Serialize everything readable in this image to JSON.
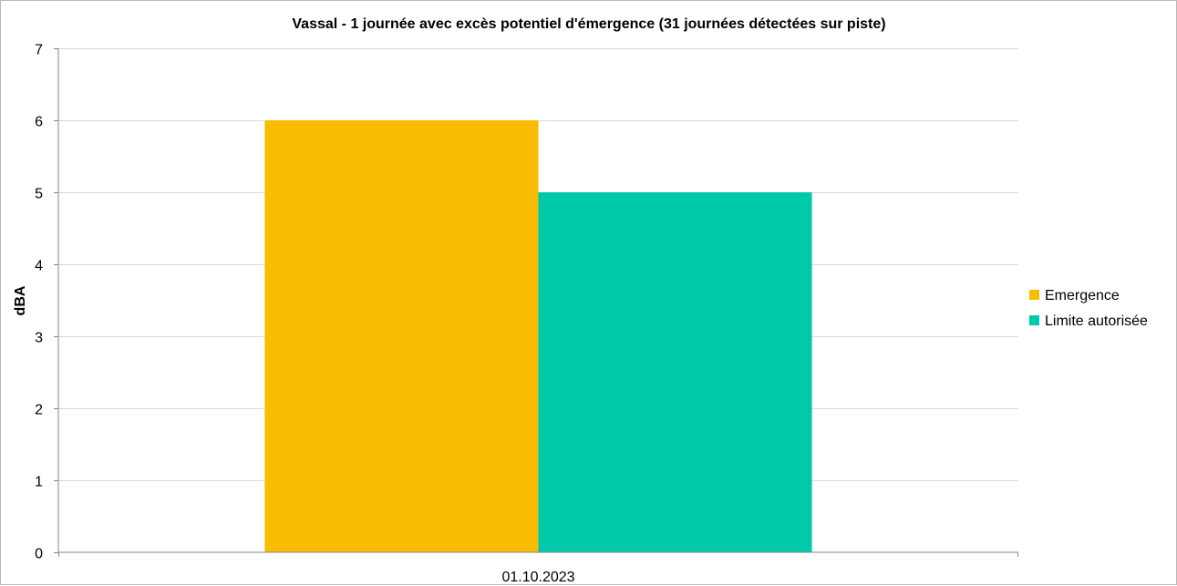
{
  "chart_data": {
    "type": "bar",
    "title": "Vassal - 1 journée avec excès potentiel d'émergence (31 journées détectées sur piste)",
    "xlabel": "",
    "ylabel": "dBA",
    "categories": [
      "01.10.2023"
    ],
    "series": [
      {
        "name": "Emergence",
        "color": "#f8bd00",
        "values": [
          6
        ]
      },
      {
        "name": "Limite autorisée",
        "color": "#00c8ab",
        "values": [
          5
        ]
      }
    ],
    "ylim": [
      0,
      7
    ],
    "yticks": [
      "0",
      "1",
      "2",
      "3",
      "4",
      "5",
      "6",
      "7"
    ],
    "grid": true,
    "legend_position": "right"
  }
}
